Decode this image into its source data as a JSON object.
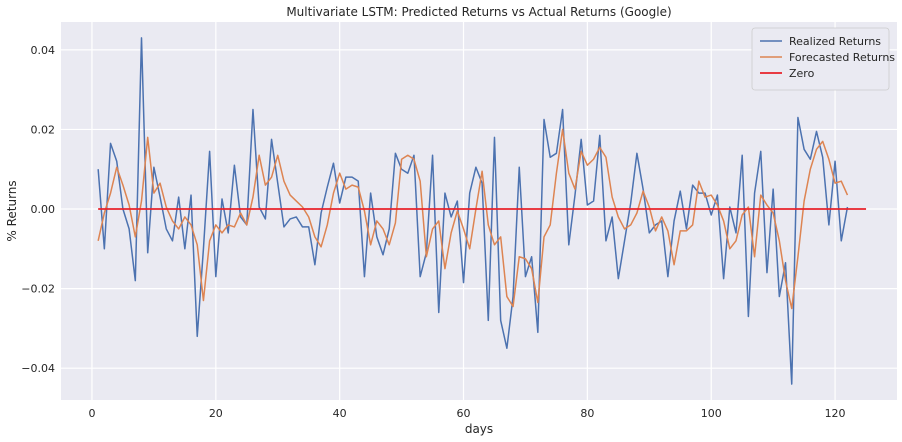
{
  "chart_data": {
    "type": "line",
    "title": "Multivariate LSTM: Predicted Returns vs Actual Returns (Google)",
    "xlabel": "days",
    "ylabel": "% Returns",
    "xlim": [
      -5,
      130
    ],
    "ylim": [
      -0.048,
      0.047
    ],
    "xticks": [
      0,
      20,
      40,
      60,
      80,
      100,
      120
    ],
    "yticks": [
      -0.04,
      -0.02,
      0.0,
      0.02,
      0.04
    ],
    "ytick_labels": [
      "−0.04",
      "−0.02",
      "0.00",
      "0.02",
      "0.04"
    ],
    "grid": true,
    "legend_position": "top-right",
    "series": [
      {
        "name": "Realized Returns",
        "color": "#4c72b0",
        "x_start": 1,
        "values": [
          0.01,
          -0.01,
          0.0165,
          0.012,
          0.0,
          -0.005,
          -0.018,
          0.043,
          -0.011,
          0.0105,
          0.003,
          -0.005,
          -0.008,
          0.003,
          -0.01,
          0.0035,
          -0.032,
          -0.01,
          0.0145,
          -0.017,
          0.0025,
          -0.006,
          0.011,
          -0.002,
          -0.004,
          0.025,
          0.0005,
          -0.0025,
          0.0175,
          0.0065,
          -0.0045,
          -0.0025,
          -0.002,
          -0.0045,
          -0.0045,
          -0.014,
          -0.001,
          0.0055,
          0.0115,
          0.0015,
          0.008,
          0.008,
          0.007,
          -0.017,
          0.004,
          -0.007,
          -0.0115,
          -0.005,
          0.014,
          0.01,
          0.009,
          0.0135,
          -0.017,
          -0.011,
          0.0135,
          -0.026,
          0.004,
          -0.002,
          0.002,
          -0.0185,
          0.004,
          0.0105,
          0.0065,
          -0.028,
          0.018,
          -0.028,
          -0.035,
          -0.022,
          0.0105,
          -0.017,
          -0.012,
          -0.031,
          0.0225,
          0.013,
          0.014,
          0.025,
          -0.009,
          0.0035,
          0.0175,
          0.001,
          0.002,
          0.0185,
          -0.008,
          -0.002,
          -0.0175,
          -0.008,
          0.0015,
          0.014,
          0.005,
          -0.006,
          -0.004,
          -0.003,
          -0.017,
          -0.003,
          0.0045,
          -0.005,
          0.006,
          0.004,
          0.004,
          -0.0015,
          0.0035,
          -0.0175,
          0.0005,
          -0.006,
          0.0135,
          -0.027,
          0.004,
          0.0145,
          -0.016,
          0.005,
          -0.022,
          -0.0135,
          -0.044,
          0.023,
          0.015,
          0.0125,
          0.0195,
          0.013,
          -0.004,
          0.012,
          -0.008,
          0.0005
        ]
      },
      {
        "name": "Forecasted Returns",
        "color": "#dd8452",
        "x_start": 1,
        "values": [
          -0.008,
          -0.001,
          0.004,
          0.0105,
          0.006,
          0.001,
          -0.007,
          0.002,
          0.018,
          0.004,
          0.0065,
          0.0005,
          -0.003,
          -0.005,
          -0.002,
          -0.004,
          -0.009,
          -0.023,
          -0.008,
          -0.004,
          -0.006,
          -0.004,
          -0.0045,
          -0.001,
          -0.004,
          0.003,
          0.0135,
          0.006,
          0.008,
          0.0135,
          0.007,
          0.0035,
          0.002,
          0.0005,
          -0.002,
          -0.007,
          -0.0095,
          -0.004,
          0.004,
          0.009,
          0.005,
          0.006,
          0.0055,
          -0.0005,
          -0.009,
          -0.003,
          -0.005,
          -0.009,
          -0.0035,
          0.0125,
          0.0135,
          0.0125,
          0.007,
          -0.012,
          -0.005,
          -0.003,
          -0.015,
          -0.006,
          -0.0005,
          -0.005,
          -0.01,
          0.0,
          0.0095,
          -0.004,
          -0.009,
          -0.007,
          -0.022,
          -0.0245,
          -0.012,
          -0.0125,
          -0.015,
          -0.0235,
          -0.007,
          -0.004,
          0.009,
          0.02,
          0.009,
          0.005,
          0.0145,
          0.011,
          0.0125,
          0.0155,
          0.013,
          0.003,
          -0.002,
          -0.005,
          -0.004,
          -0.001,
          0.0045,
          0.0005,
          -0.0055,
          -0.002,
          -0.0055,
          -0.014,
          -0.0055,
          -0.0055,
          -0.004,
          0.007,
          0.003,
          0.0035,
          0.001,
          -0.003,
          -0.01,
          -0.008,
          -0.0015,
          0.0005,
          -0.012,
          0.0035,
          0.001,
          -0.001,
          -0.008,
          -0.018,
          -0.025,
          -0.012,
          0.002,
          0.01,
          0.015,
          0.017,
          0.0125,
          0.0065,
          0.007,
          0.0035
        ]
      },
      {
        "name": "Zero",
        "color": "#e8222a",
        "x": [
          1,
          125
        ],
        "values": [
          0,
          0
        ]
      }
    ]
  }
}
